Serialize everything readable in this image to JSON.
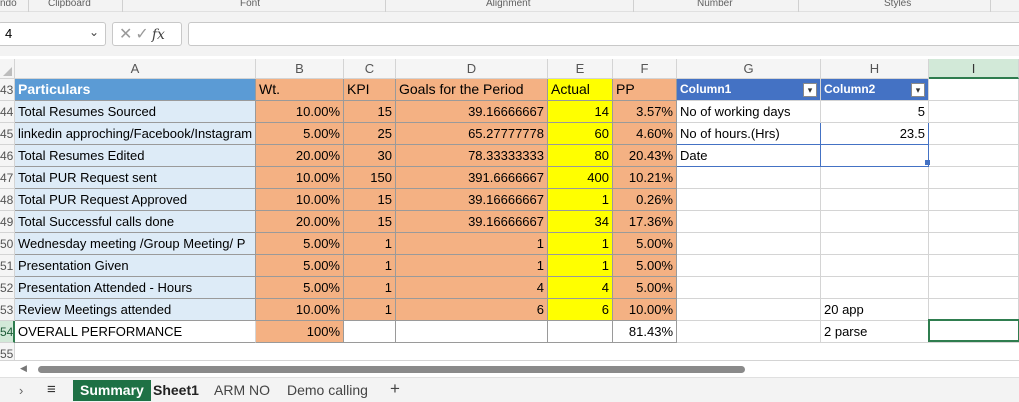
{
  "ribbon": {
    "groups": [
      "ndo",
      "Clipboard",
      "Font",
      "Alignment",
      "Number",
      "Styles"
    ]
  },
  "formula_bar": {
    "name_box": "4",
    "cancel": "✕",
    "enter": "✓",
    "fx": "fx",
    "formula": ""
  },
  "columns": [
    "A",
    "B",
    "C",
    "D",
    "E",
    "F",
    "G",
    "H",
    "I"
  ],
  "rows": [
    {
      "num": "43",
      "a": "Particulars",
      "b": "Wt.",
      "c": "KPI",
      "d": "Goals for the Period",
      "e": "Actual",
      "f": "PP",
      "g": "Column1",
      "h": "Column2"
    },
    {
      "num": "44",
      "a": "Total Resumes Sourced",
      "b": "10.00%",
      "c": "15",
      "d": "39.16666667",
      "e": "14",
      "f": "3.57%",
      "g": "No of working days",
      "h": "5"
    },
    {
      "num": "45",
      "a": "linkedin approching/Facebook/Instagram",
      "b": "5.00%",
      "c": "25",
      "d": "65.27777778",
      "e": "60",
      "f": "4.60%",
      "g": "No of hours.(Hrs)",
      "h": "23.5"
    },
    {
      "num": "46",
      "a": "Total Resumes Edited",
      "b": "20.00%",
      "c": "30",
      "d": "78.33333333",
      "e": "80",
      "f": "20.43%",
      "g": "Date",
      "h": ""
    },
    {
      "num": "47",
      "a": "Total PUR Request sent",
      "b": "10.00%",
      "c": "150",
      "d": "391.6666667",
      "e": "400",
      "f": "10.21%",
      "g": "",
      "h": ""
    },
    {
      "num": "48",
      "a": "Total PUR Request Approved",
      "b": "10.00%",
      "c": "15",
      "d": "39.16666667",
      "e": "1",
      "f": "0.26%",
      "g": "",
      "h": ""
    },
    {
      "num": "49",
      "a": "Total Successful calls done",
      "b": "20.00%",
      "c": "15",
      "d": "39.16666667",
      "e": "34",
      "f": "17.36%",
      "g": "",
      "h": ""
    },
    {
      "num": "50",
      "a": "Wednesday meeting /Group Meeting/ P",
      "b": "5.00%",
      "c": "1",
      "d": "1",
      "e": "1",
      "f": "5.00%",
      "g": "",
      "h": ""
    },
    {
      "num": "51",
      "a": "Presentation Given",
      "b": "5.00%",
      "c": "1",
      "d": "1",
      "e": "1",
      "f": "5.00%",
      "g": "",
      "h": ""
    },
    {
      "num": "52",
      "a": "Presentation Attended - Hours",
      "b": "5.00%",
      "c": "1",
      "d": "4",
      "e": "4",
      "f": "5.00%",
      "g": "",
      "h": ""
    },
    {
      "num": "53",
      "a": "Review Meetings attended",
      "b": "10.00%",
      "c": "1",
      "d": "6",
      "e": "6",
      "f": "10.00%",
      "g": "",
      "h": "20 app"
    },
    {
      "num": "54",
      "a": "OVERALL PERFORMANCE",
      "b": "100%",
      "c": "",
      "d": "",
      "e": "",
      "f": "81.43%",
      "g": "",
      "h": "2 parse"
    },
    {
      "num": "55"
    }
  ],
  "sheet_tabs": {
    "add": "+",
    "menu": "≡",
    "prev": "›",
    "tabs": [
      {
        "label": "Summary",
        "active": true
      },
      {
        "label": "Sheet1",
        "active": false
      },
      {
        "label": "ARM NO",
        "active": false
      },
      {
        "label": "Demo calling",
        "active": false
      }
    ]
  },
  "colors": {
    "peach": "#f4b183",
    "yellow": "#ffff00",
    "light_blue": "#ddebf7",
    "header_blue": "#5b9bd5",
    "table_header": "#4472c4",
    "sheet_tab_active": "#1e7145"
  }
}
